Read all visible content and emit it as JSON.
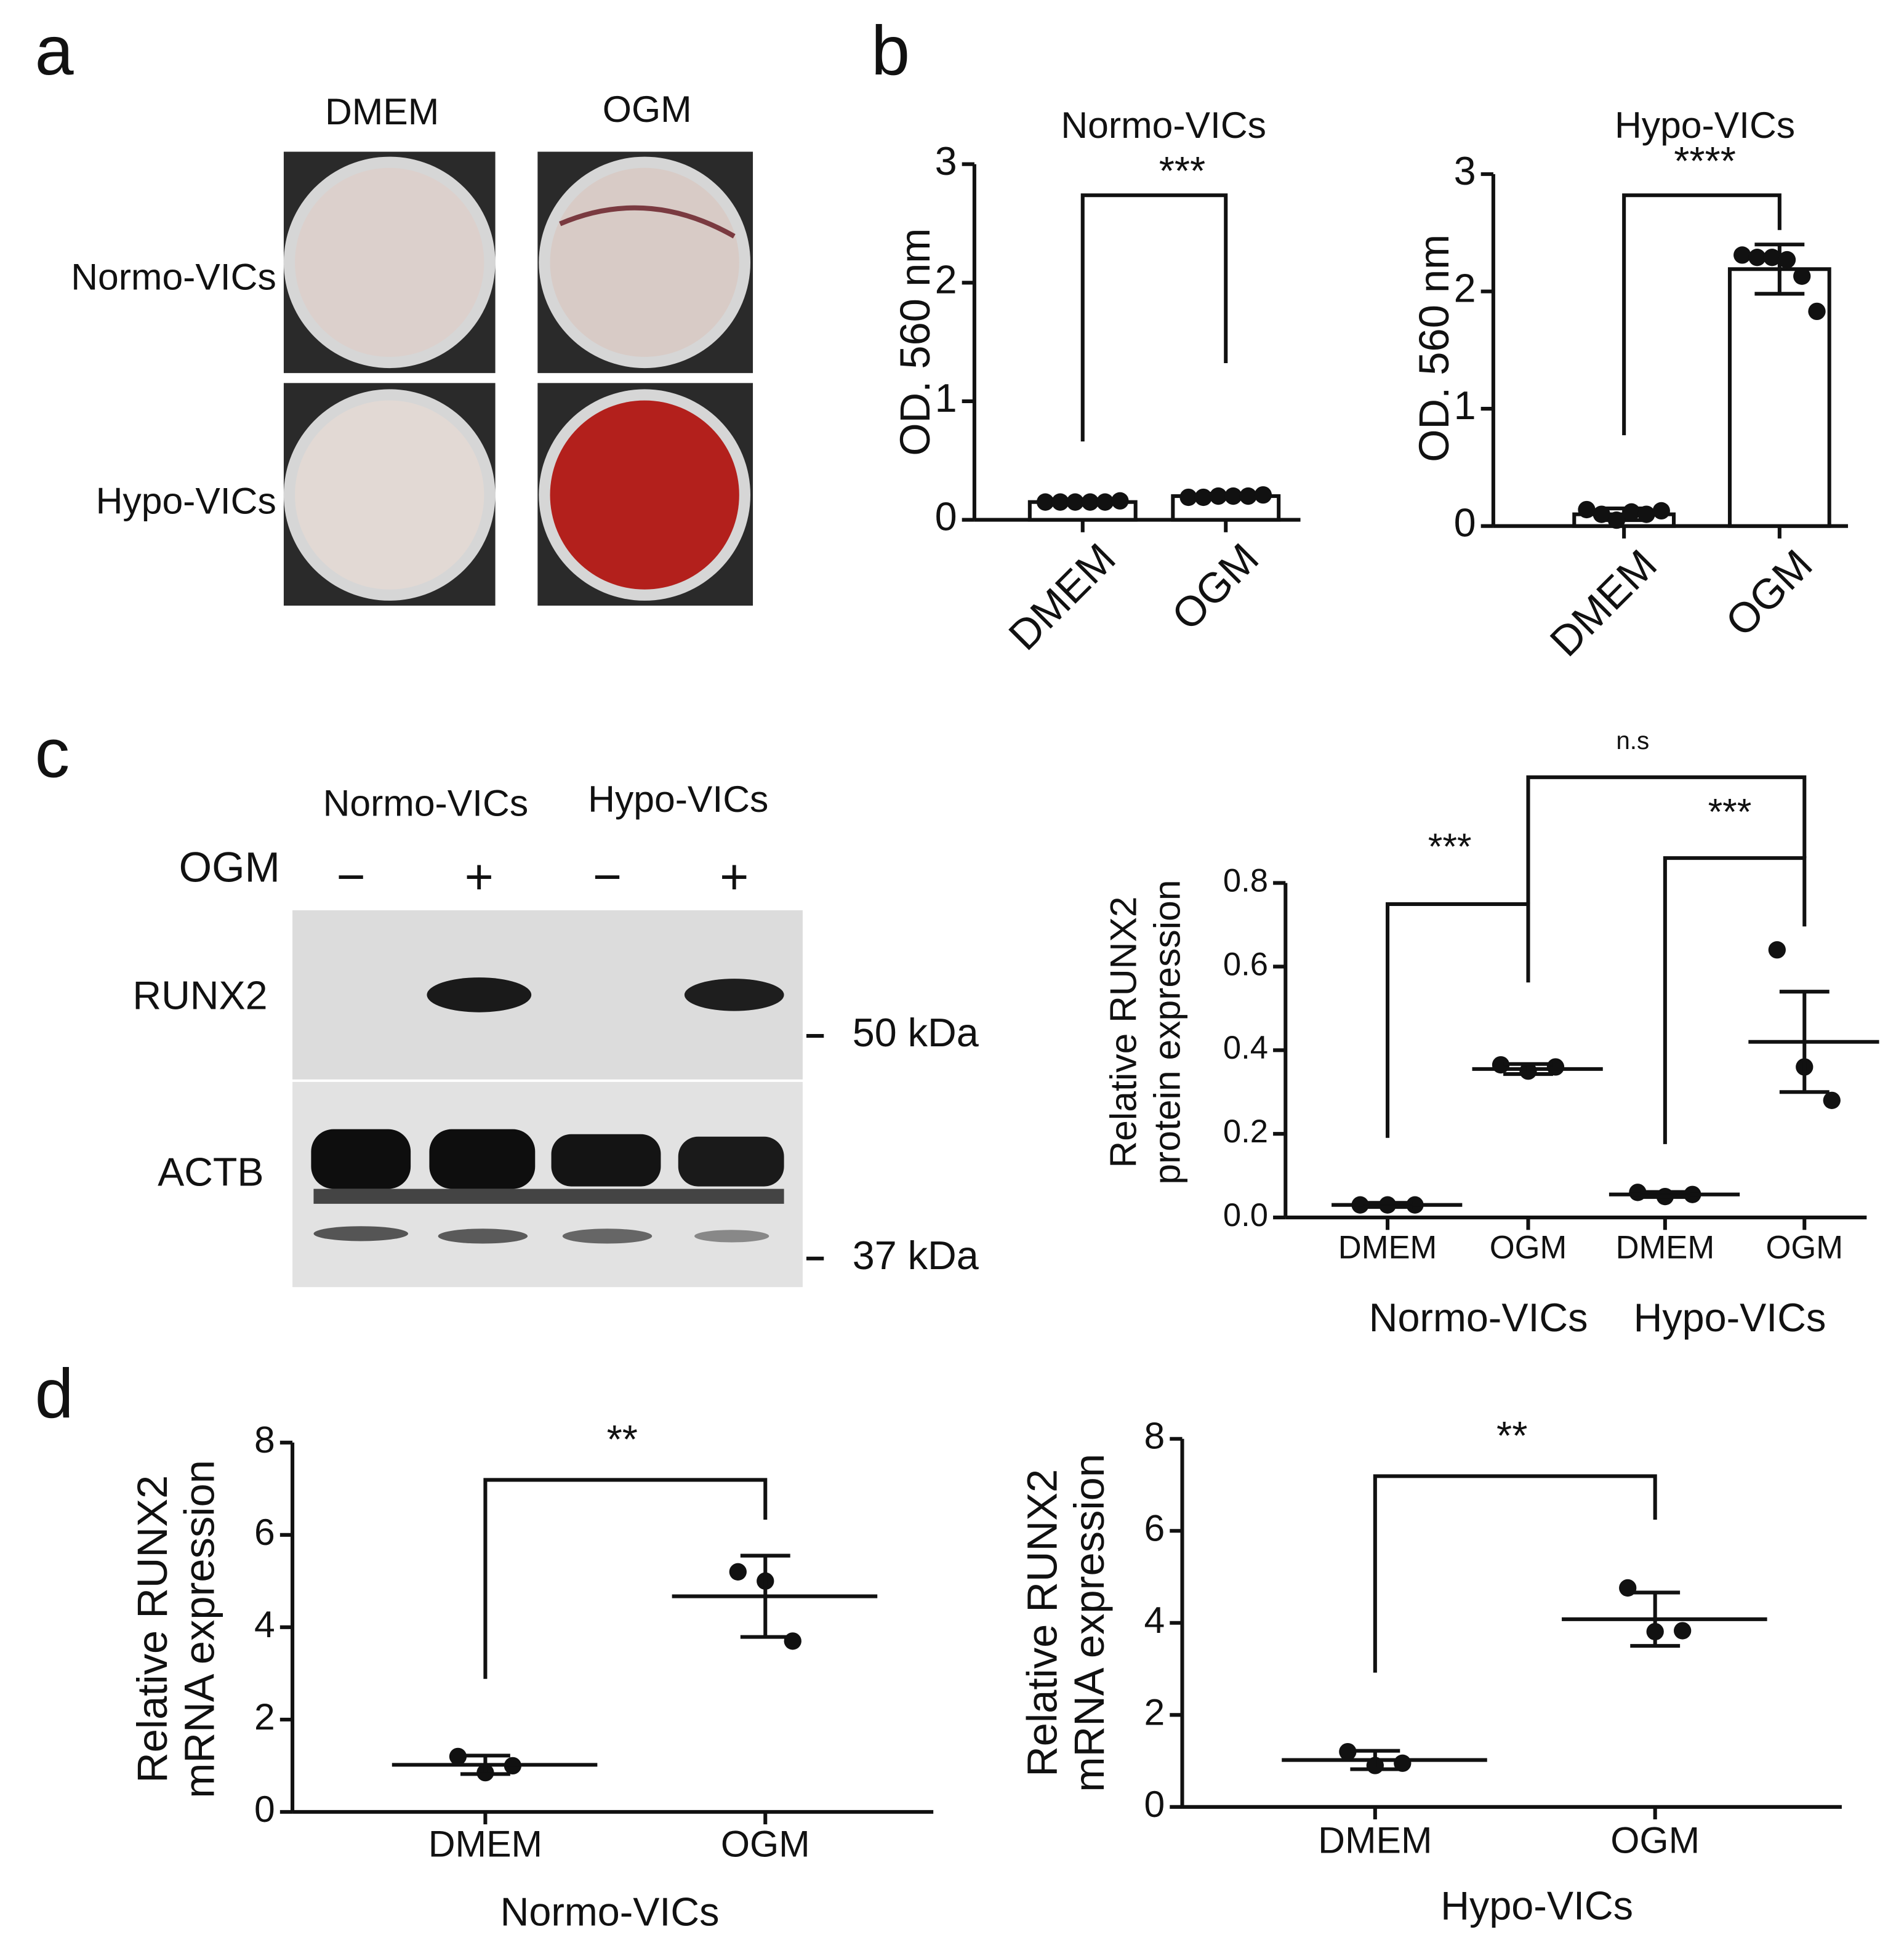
{
  "panel_labels": [
    "a",
    "b",
    "c",
    "d"
  ],
  "panel_a": {
    "columns": [
      "DMEM",
      "OGM"
    ],
    "rows": [
      "Normo-VICs",
      "Hypo-VICs"
    ]
  },
  "panel_c_blot": {
    "groups": [
      "Normo-VICs",
      "Hypo-VICs"
    ],
    "treatment": "OGM",
    "lanes": [
      "−",
      "+",
      "−",
      "+"
    ],
    "bands": [
      "RUNX2",
      "ACTB"
    ],
    "markers": [
      "50 kDa",
      "37 kDa"
    ]
  },
  "chart_data": [
    {
      "type": "bar",
      "title": "Normo-VICs",
      "y_label": "OD. 560 nm",
      "categories": [
        "DMEM",
        "OGM"
      ],
      "values": [
        0.15,
        0.2
      ],
      "errors": [
        0.02,
        0.02
      ],
      "points": [
        [
          0.15,
          0.15,
          0.15,
          0.15,
          0.15,
          0.16
        ],
        [
          0.19,
          0.19,
          0.2,
          0.2,
          0.2,
          0.21
        ]
      ],
      "color": "#ffffff",
      "ylim": [
        0,
        3
      ],
      "yticks": [
        0,
        1,
        2,
        3
      ],
      "annotations": [
        "***"
      ]
    },
    {
      "type": "bar",
      "title": "Hypo-VICs",
      "y_label": "OD. 560 nm",
      "categories": [
        "DMEM",
        "OGM"
      ],
      "values": [
        0.1,
        2.19
      ],
      "errors": [
        0.05,
        0.21
      ],
      "points": [
        [
          0.14,
          0.1,
          0.05,
          0.12,
          0.1,
          0.13
        ],
        [
          2.31,
          2.29,
          2.29,
          2.27,
          2.13,
          1.83
        ]
      ],
      "color": "#ffffff",
      "ylim": [
        0,
        3
      ],
      "yticks": [
        0,
        1,
        2,
        3
      ],
      "annotations": [
        "****"
      ]
    },
    {
      "type": "dot",
      "y_label": [
        "Relative RUNX2",
        "protein expression"
      ],
      "categories": [
        "DMEM",
        "OGM",
        "DMEM",
        "OGM"
      ],
      "groups": [
        "Normo-VICs",
        "Hypo-VICs"
      ],
      "values": [
        0.03,
        0.355,
        0.055,
        0.42
      ],
      "errors": [
        0.005,
        0.012,
        0.006,
        0.12
      ],
      "points": [
        [
          0.03,
          0.03,
          0.03
        ],
        [
          0.365,
          0.35,
          0.36
        ],
        [
          0.06,
          0.05,
          0.055
        ],
        [
          0.64,
          0.36,
          0.28
        ]
      ],
      "ylim": [
        0,
        0.8
      ],
      "yticks": [
        {
          "value": 0,
          "label": "0.0"
        },
        0.2,
        0.4,
        0.6,
        0.8
      ],
      "annotations": [
        "***",
        "***",
        "n.s"
      ]
    },
    {
      "type": "dot",
      "y_label": [
        "Relative RUNX2",
        "mRNA expression"
      ],
      "x_label": "Normo-VICs",
      "categories": [
        "DMEM",
        "OGM"
      ],
      "values": [
        1.02,
        4.67
      ],
      "errors": [
        0.2,
        0.88
      ],
      "points": [
        [
          1.2,
          0.85,
          1.0
        ],
        [
          5.2,
          5.0,
          3.7
        ]
      ],
      "ylim": [
        0,
        8
      ],
      "yticks": [
        0,
        2,
        4,
        6,
        8
      ],
      "annotations": [
        "**"
      ]
    },
    {
      "type": "dot",
      "y_label": [
        "Relative RUNX2",
        "mRNA expression"
      ],
      "x_label": "Hypo-VICs",
      "categories": [
        "DMEM",
        "OGM"
      ],
      "values": [
        1.02,
        4.08
      ],
      "errors": [
        0.2,
        0.58
      ],
      "points": [
        [
          1.2,
          0.9,
          0.95
        ],
        [
          4.76,
          3.81,
          3.83
        ]
      ],
      "ylim": [
        0,
        8
      ],
      "yticks": [
        0,
        2,
        4,
        6,
        8
      ],
      "annotations": [
        "**"
      ]
    }
  ]
}
